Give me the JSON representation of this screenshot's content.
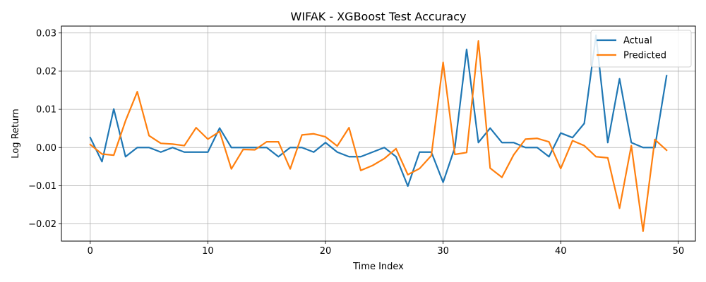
{
  "chart_data": {
    "type": "line",
    "title": "WIFAK - XGBoost Test Accuracy",
    "xlabel": "Time Index",
    "ylabel": "Log Return",
    "xlim": [
      -2.45,
      51.45
    ],
    "ylim": [
      -0.0245,
      0.0318
    ],
    "xticks": [
      0,
      10,
      20,
      30,
      40,
      50
    ],
    "xtick_labels": [
      "0",
      "10",
      "20",
      "30",
      "40",
      "50"
    ],
    "yticks": [
      -0.02,
      -0.01,
      0.0,
      0.01,
      0.02,
      0.03
    ],
    "ytick_labels": [
      "−0.02",
      "−0.01",
      "0.00",
      "0.01",
      "0.02",
      "0.03"
    ],
    "grid": true,
    "legend_position": "top-right",
    "series": [
      {
        "name": "Actual",
        "color": "#1f77b4",
        "x": [
          0,
          1,
          2,
          3,
          4,
          5,
          6,
          7,
          8,
          9,
          10,
          11,
          12,
          13,
          14,
          15,
          16,
          17,
          18,
          19,
          20,
          21,
          22,
          23,
          24,
          25,
          26,
          27,
          28,
          29,
          30,
          31,
          32,
          33,
          34,
          35,
          36,
          37,
          38,
          39,
          40,
          41,
          42,
          43,
          44,
          45,
          46,
          47,
          48,
          49
        ],
        "values": [
          0.0026,
          -0.0037,
          0.0101,
          -0.0024,
          0.0,
          0.0,
          -0.0012,
          0.0,
          -0.0012,
          -0.0012,
          -0.0012,
          0.0051,
          0.0,
          0.0,
          0.0,
          0.0,
          -0.0024,
          0.0,
          0.0,
          -0.0012,
          0.0013,
          -0.0012,
          -0.0024,
          -0.0024,
          -0.0012,
          0.0,
          -0.0024,
          -0.0101,
          -0.0012,
          -0.0012,
          -0.0091,
          0.0,
          0.0257,
          0.0013,
          0.0051,
          0.0013,
          0.0013,
          0.0,
          0.0,
          -0.0024,
          0.0038,
          0.0026,
          0.0063,
          0.0294,
          0.0013,
          0.018,
          0.0013,
          0.0,
          0.0,
          0.0188
        ]
      },
      {
        "name": "Predicted",
        "color": "#ff7f0e",
        "x": [
          0,
          1,
          2,
          3,
          4,
          5,
          6,
          7,
          8,
          9,
          10,
          11,
          12,
          13,
          14,
          15,
          16,
          17,
          18,
          19,
          20,
          21,
          22,
          23,
          24,
          25,
          26,
          27,
          28,
          29,
          30,
          31,
          32,
          33,
          34,
          35,
          36,
          37,
          38,
          39,
          40,
          41,
          42,
          43,
          44,
          45,
          46,
          47,
          48,
          49
        ],
        "values": [
          0.0008,
          -0.0017,
          -0.002,
          0.007,
          0.0146,
          0.0031,
          0.0011,
          0.0009,
          0.0005,
          0.0052,
          0.0022,
          0.0042,
          -0.0056,
          -0.0005,
          -0.0006,
          0.0015,
          0.0015,
          -0.0056,
          0.0033,
          0.0036,
          0.0028,
          0.0004,
          0.0052,
          -0.006,
          -0.0047,
          -0.0029,
          -0.0003,
          -0.0071,
          -0.0055,
          -0.0021,
          0.0223,
          -0.0018,
          -0.0013,
          0.0279,
          -0.0054,
          -0.0078,
          -0.0019,
          0.0022,
          0.0024,
          0.0015,
          -0.0055,
          0.0018,
          0.0005,
          -0.0024,
          -0.0027,
          -0.0159,
          0.0005,
          -0.0219,
          0.0021,
          -0.0007
        ]
      }
    ]
  }
}
